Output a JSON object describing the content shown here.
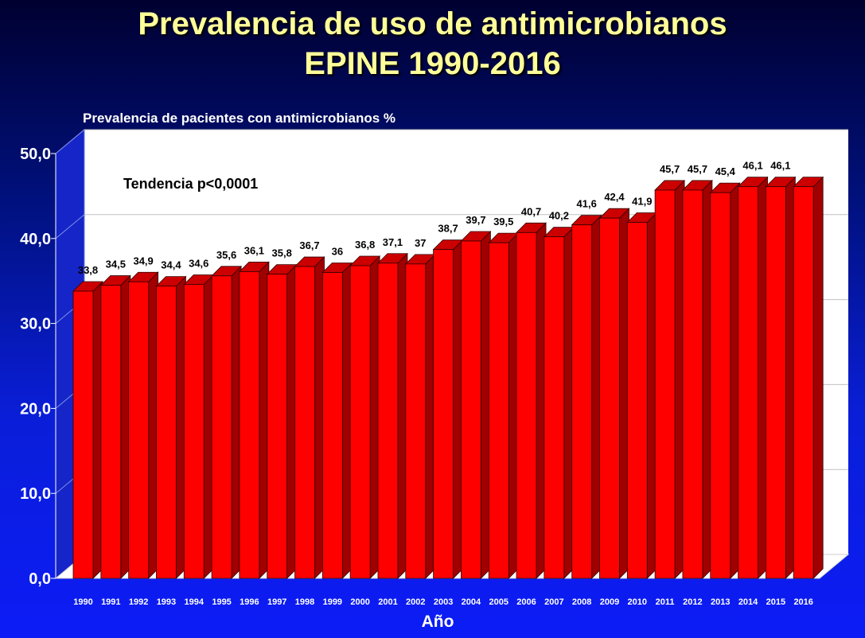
{
  "header": {
    "title_line1": "Prevalencia de uso de antimicrobianos",
    "title_line2": "EPINE 1990-2016"
  },
  "chart_data": {
    "type": "bar",
    "title": "Prevalencia de uso de antimicrobianos EPINE 1990-2016",
    "subtitle": "Prevalencia de pacientes con antimicrobianos %",
    "xlabel": "Año",
    "ylabel": "",
    "annotation": "Tendencia p<0,0001",
    "ylim": [
      0,
      50
    ],
    "yticks": [
      "0,0",
      "10,0",
      "20,0",
      "30,0",
      "40,0",
      "50,0"
    ],
    "grid": true,
    "legend": "none",
    "categories": [
      "1990",
      "1991",
      "1992",
      "1993",
      "1994",
      "1995",
      "1996",
      "1997",
      "1998",
      "1999",
      "2000",
      "2001",
      "2002",
      "2003",
      "2004",
      "2005",
      "2006",
      "2007",
      "2008",
      "2009",
      "2010",
      "2011",
      "2012",
      "2013",
      "2014",
      "2015",
      "2016"
    ],
    "values": [
      33.8,
      34.5,
      34.9,
      34.4,
      34.6,
      35.6,
      36.1,
      35.8,
      36.7,
      36,
      36.8,
      37.1,
      37,
      38.7,
      39.7,
      39.5,
      40.7,
      40.2,
      41.6,
      42.4,
      41.9,
      45.7,
      45.7,
      45.4,
      46.1,
      46.1,
      46.1
    ],
    "value_labels": [
      "33,8",
      "34,5",
      "34,9",
      "34,4",
      "34,6",
      "35,6",
      "36,1",
      "35,8",
      "36,7",
      "36",
      "36,8",
      "37,1",
      "37",
      "38,7",
      "39,7",
      "39,5",
      "40,7",
      "40,2",
      "41,6",
      "42,4",
      "41,9",
      "45,7",
      "45,7",
      "45,4",
      "46,1",
      "46,1",
      ""
    ],
    "colors": {
      "bar_front": "#ff0000",
      "bar_side": "#a00000",
      "bar_top": "#cc0000",
      "plot_background": "#ffffff",
      "floor": "#ffffff",
      "gridline": "#c0c0c0",
      "axis_text": "#ffffff",
      "label_text": "#000000",
      "title": "#ffff99"
    }
  }
}
